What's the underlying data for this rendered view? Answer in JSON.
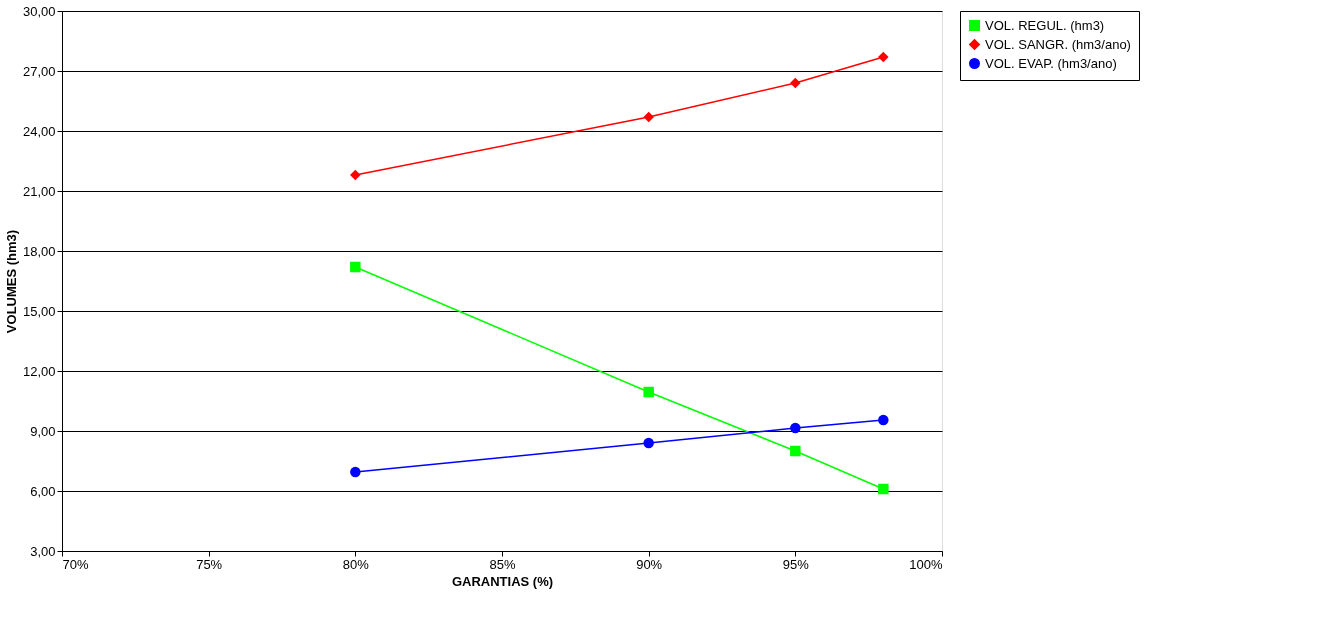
{
  "chart_data": {
    "type": "line",
    "xlabel": "GARANTIAS (%)",
    "ylabel": "VOLUMES (hm3)",
    "x": [
      80,
      90,
      95,
      98
    ],
    "xlim": [
      70,
      100
    ],
    "xticks": [
      {
        "value": 70,
        "label": "70%"
      },
      {
        "value": 75,
        "label": "75%"
      },
      {
        "value": 80,
        "label": "80%"
      },
      {
        "value": 85,
        "label": "85%"
      },
      {
        "value": 90,
        "label": "90%"
      },
      {
        "value": 95,
        "label": "95%"
      },
      {
        "value": 100,
        "label": "100%"
      }
    ],
    "ylim": [
      3,
      30
    ],
    "yticks": [
      {
        "value": 3,
        "label": "3,00"
      },
      {
        "value": 6,
        "label": "6,00"
      },
      {
        "value": 9,
        "label": "9,00"
      },
      {
        "value": 12,
        "label": "12,00"
      },
      {
        "value": 15,
        "label": "15,00"
      },
      {
        "value": 18,
        "label": "18,00"
      },
      {
        "value": 21,
        "label": "21,00"
      },
      {
        "value": 24,
        "label": "24,00"
      },
      {
        "value": 27,
        "label": "27,00"
      },
      {
        "value": 30,
        "label": "30,00"
      }
    ],
    "grid": "y",
    "legend": "right",
    "line_style": "solid",
    "series": [
      {
        "name": "VOL. REGUL.   (hm3)",
        "color": "#00ff00",
        "marker": "square",
        "values": [
          17.2,
          10.95,
          8.0,
          6.1
        ]
      },
      {
        "name": "VOL. SANGR. (hm3/ano)",
        "color": "#ff0000",
        "marker": "diamond",
        "values": [
          21.8,
          24.7,
          26.4,
          27.7
        ]
      },
      {
        "name": "VOL. EVAP. (hm3/ano)",
        "color": "#0000ff",
        "marker": "circle",
        "values": [
          6.95,
          8.4,
          9.15,
          9.55
        ]
      }
    ]
  }
}
